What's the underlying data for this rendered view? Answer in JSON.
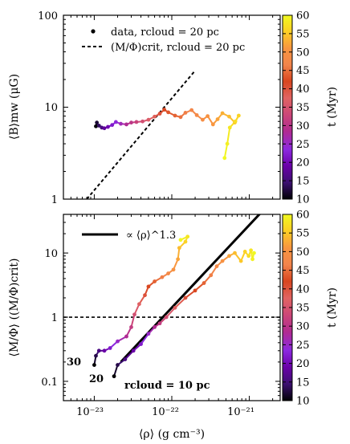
{
  "figure": {
    "colormap": [
      "#000004",
      "#3b0f70",
      "#6a00a8",
      "#8c29e0",
      "#b12a90",
      "#cc4778",
      "#e16462",
      "#d8451f",
      "#f2844b",
      "#f89540",
      "#fcce25",
      "#f0f921"
    ],
    "colorbar_label": "t (Myr)",
    "colorbar_ticks": [
      "10",
      "15",
      "20",
      "25",
      "30",
      "35",
      "40",
      "45",
      "50",
      "55",
      "60"
    ],
    "xlabel": "⟨ρ⟩  (g cm⁻³)",
    "xtick_labels": [
      "10⁻²³",
      "10⁻²²",
      "10⁻²¹"
    ]
  },
  "chart_data": [
    {
      "type": "line",
      "title": "",
      "ylabel": "⟨B⟩mw  (μG)",
      "xlim": [
        4e-24,
        2.5e-21
      ],
      "ylim": [
        1,
        100
      ],
      "yscale": "log",
      "xscale": "log",
      "ytick_labels": [
        "1",
        "10",
        "100"
      ],
      "legend": {
        "placement": "top-left",
        "entries": [
          "data, rcloud = 20 pc",
          "(M/Φ)crit, rcloud = 20 pc"
        ]
      },
      "series": [
        {
          "name": "data, rcloud = 20 pc",
          "style": "points-colored-by-time",
          "points": [
            {
              "rho": 1.05e-23,
              "B": 6.2,
              "t": 10
            },
            {
              "rho": 1.08e-23,
              "B": 6.8,
              "t": 12
            },
            {
              "rho": 1.15e-23,
              "B": 6.3,
              "t": 14
            },
            {
              "rho": 1.25e-23,
              "B": 6.0,
              "t": 16
            },
            {
              "rho": 1.35e-23,
              "B": 5.9,
              "t": 18
            },
            {
              "rho": 1.5e-23,
              "B": 6.1,
              "t": 20
            },
            {
              "rho": 1.7e-23,
              "B": 6.4,
              "t": 22
            },
            {
              "rho": 1.9e-23,
              "B": 6.9,
              "t": 24
            },
            {
              "rho": 2.2e-23,
              "B": 6.6,
              "t": 26
            },
            {
              "rho": 2.6e-23,
              "B": 6.5,
              "t": 28
            },
            {
              "rho": 3e-23,
              "B": 6.8,
              "t": 30
            },
            {
              "rho": 3.5e-23,
              "B": 6.9,
              "t": 32
            },
            {
              "rho": 4.2e-23,
              "B": 7.0,
              "t": 34
            },
            {
              "rho": 5e-23,
              "B": 7.3,
              "t": 36
            },
            {
              "rho": 6e-23,
              "B": 7.9,
              "t": 38
            },
            {
              "rho": 7e-23,
              "B": 8.5,
              "t": 40
            },
            {
              "rho": 8e-23,
              "B": 9.4,
              "t": 42
            },
            {
              "rho": 9e-23,
              "B": 8.8,
              "t": 43
            },
            {
              "rho": 1.1e-22,
              "B": 8.1,
              "t": 44
            },
            {
              "rho": 1.3e-22,
              "B": 7.8,
              "t": 45
            },
            {
              "rho": 1.5e-22,
              "B": 8.7,
              "t": 46
            },
            {
              "rho": 1.8e-22,
              "B": 9.3,
              "t": 47
            },
            {
              "rho": 2.1e-22,
              "B": 8.2,
              "t": 48
            },
            {
              "rho": 2.5e-22,
              "B": 7.3,
              "t": 49
            },
            {
              "rho": 2.9e-22,
              "B": 8.0,
              "t": 50
            },
            {
              "rho": 3.4e-22,
              "B": 6.5,
              "t": 51
            },
            {
              "rho": 3.9e-22,
              "B": 7.4,
              "t": 52
            },
            {
              "rho": 4.5e-22,
              "B": 8.6,
              "t": 53
            },
            {
              "rho": 5.5e-22,
              "B": 7.9,
              "t": 54
            },
            {
              "rho": 6.5e-22,
              "B": 6.8,
              "t": 55
            },
            {
              "rho": 7.3e-22,
              "B": 8.1,
              "t": 56
            },
            {
              "rho": 6.6e-22,
              "B": 7.0,
              "t": 57
            },
            {
              "rho": 5.6e-22,
              "B": 6.0,
              "t": 58
            },
            {
              "rho": 5.2e-22,
              "B": 4.0,
              "t": 59
            },
            {
              "rho": 4.8e-22,
              "B": 2.8,
              "t": 60
            }
          ]
        },
        {
          "name": "(M/Φ)crit, rcloud = 20 pc",
          "style": "dashed",
          "points": [
            [
              8e-24,
              1.0
            ],
            [
              2e-22,
              25.0
            ]
          ]
        }
      ]
    },
    {
      "type": "line",
      "title": "",
      "ylabel": "⟨M/Φ⟩  ((M/Φ)crit)",
      "xlim": [
        4e-24,
        2.5e-21
      ],
      "ylim": [
        0.05,
        40
      ],
      "yscale": "log",
      "xscale": "log",
      "ytick_labels": [
        "0.1",
        "1",
        "10"
      ],
      "reference_line": {
        "y": 1,
        "style": "dashed"
      },
      "legend": {
        "placement": "top-left",
        "entries": [
          "∝ ⟨ρ⟩^1.3"
        ]
      },
      "annotations": [
        "30",
        "20",
        "rcloud = 10 pc"
      ],
      "series": [
        {
          "name": "∝ ⟨ρ⟩^1.3",
          "style": "solid-thick",
          "points": [
            [
              2.2e-23,
              0.2
            ],
            [
              1.6e-21,
              50.0
            ]
          ]
        },
        {
          "name": "30",
          "style": "points-colored-by-time",
          "points": [
            {
              "rho": 1e-23,
              "MPhi": 0.18,
              "t": 10
            },
            {
              "rho": 1.05e-23,
              "MPhi": 0.25,
              "t": 13
            },
            {
              "rho": 1.15e-23,
              "MPhi": 0.3,
              "t": 16
            },
            {
              "rho": 1.35e-23,
              "MPhi": 0.3,
              "t": 19
            },
            {
              "rho": 1.6e-23,
              "MPhi": 0.33,
              "t": 22
            },
            {
              "rho": 2e-23,
              "MPhi": 0.42,
              "t": 25
            },
            {
              "rho": 2.6e-23,
              "MPhi": 0.5,
              "t": 28
            },
            {
              "rho": 3e-23,
              "MPhi": 0.7,
              "t": 31
            },
            {
              "rho": 3.3e-23,
              "MPhi": 1.1,
              "t": 34
            },
            {
              "rho": 3.8e-23,
              "MPhi": 1.6,
              "t": 37
            },
            {
              "rho": 4.5e-23,
              "MPhi": 2.2,
              "t": 40
            },
            {
              "rho": 5e-23,
              "MPhi": 3.0,
              "t": 42
            },
            {
              "rho": 6e-23,
              "MPhi": 3.6,
              "t": 44
            },
            {
              "rho": 7.5e-23,
              "MPhi": 4.2,
              "t": 46
            },
            {
              "rho": 9e-23,
              "MPhi": 4.8,
              "t": 48
            },
            {
              "rho": 1.05e-22,
              "MPhi": 5.5,
              "t": 50
            },
            {
              "rho": 1.2e-22,
              "MPhi": 8.0,
              "t": 52
            },
            {
              "rho": 1.25e-22,
              "MPhi": 12.0,
              "t": 54
            },
            {
              "rho": 1.5e-22,
              "MPhi": 15.0,
              "t": 56
            },
            {
              "rho": 1.6e-22,
              "MPhi": 18.0,
              "t": 58
            },
            {
              "rho": 1.3e-22,
              "MPhi": 16.0,
              "t": 60
            }
          ]
        },
        {
          "name": "20",
          "style": "points-colored-by-time",
          "points": [
            {
              "rho": 1.8e-23,
              "MPhi": 0.12,
              "t": 10
            },
            {
              "rho": 2e-23,
              "MPhi": 0.18,
              "t": 13
            },
            {
              "rho": 2.5e-23,
              "MPhi": 0.22,
              "t": 16
            },
            {
              "rho": 3.2e-23,
              "MPhi": 0.3,
              "t": 19
            },
            {
              "rho": 4e-23,
              "MPhi": 0.38,
              "t": 22
            },
            {
              "rho": 5e-23,
              "MPhi": 0.55,
              "t": 25
            },
            {
              "rho": 6e-23,
              "MPhi": 0.7,
              "t": 28
            },
            {
              "rho": 7e-23,
              "MPhi": 0.8,
              "t": 31
            },
            {
              "rho": 8.5e-23,
              "MPhi": 1.0,
              "t": 34
            },
            {
              "rho": 1.1e-22,
              "MPhi": 1.4,
              "t": 37
            },
            {
              "rho": 1.5e-22,
              "MPhi": 2.0,
              "t": 40
            },
            {
              "rho": 2e-22,
              "MPhi": 2.6,
              "t": 42
            },
            {
              "rho": 2.6e-22,
              "MPhi": 3.4,
              "t": 44
            },
            {
              "rho": 3.2e-22,
              "MPhi": 4.5,
              "t": 46
            },
            {
              "rho": 3.8e-22,
              "MPhi": 6.2,
              "t": 48
            },
            {
              "rho": 4.5e-22,
              "MPhi": 7.5,
              "t": 50
            },
            {
              "rho": 5.5e-22,
              "MPhi": 9.0,
              "t": 52
            },
            {
              "rho": 6.5e-22,
              "MPhi": 10.0,
              "t": 54
            },
            {
              "rho": 7.8e-22,
              "MPhi": 7.5,
              "t": 55
            },
            {
              "rho": 8.8e-22,
              "MPhi": 10.5,
              "t": 56
            },
            {
              "rho": 9.8e-22,
              "MPhi": 9.0,
              "t": 57
            },
            {
              "rho": 1.05e-21,
              "MPhi": 11.0,
              "t": 58
            },
            {
              "rho": 1.1e-21,
              "MPhi": 8.0,
              "t": 59
            },
            {
              "rho": 1.15e-21,
              "MPhi": 10.0,
              "t": 60
            }
          ]
        }
      ]
    }
  ]
}
